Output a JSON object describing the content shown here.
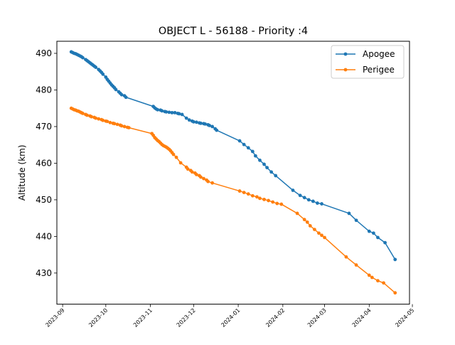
{
  "chart_data": {
    "type": "line",
    "title": "OBJECT L - 56188 - Priority :4",
    "xlabel": "",
    "ylabel": "Altitude (km)",
    "xlim": [
      "2023-08-28",
      "2024-04-29"
    ],
    "ylim": [
      421.5,
      493.3
    ],
    "x_ticks": [
      "2023-09",
      "2023-10",
      "2023-11",
      "2023-12",
      "2024-01",
      "2024-02",
      "2024-03",
      "2024-04",
      "2024-05"
    ],
    "y_ticks": [
      430,
      440,
      450,
      460,
      470,
      480,
      490
    ],
    "grid": false,
    "legend_position": "top-right",
    "series": [
      {
        "name": "Apogee",
        "color": "#1f77b4",
        "points": [
          [
            "2023-09-07",
            490.4
          ],
          [
            "2023-09-08",
            490.2
          ],
          [
            "2023-09-09",
            490.0
          ],
          [
            "2023-09-10",
            489.9
          ],
          [
            "2023-09-11",
            489.7
          ],
          [
            "2023-09-12",
            489.5
          ],
          [
            "2023-09-13",
            489.3
          ],
          [
            "2023-09-14",
            489.1
          ],
          [
            "2023-09-15",
            488.8
          ],
          [
            "2023-09-17",
            488.3
          ],
          [
            "2023-09-18",
            488.0
          ],
          [
            "2023-09-19",
            487.7
          ],
          [
            "2023-09-20",
            487.4
          ],
          [
            "2023-09-21",
            487.1
          ],
          [
            "2023-09-22",
            486.8
          ],
          [
            "2023-09-23",
            486.5
          ],
          [
            "2023-09-24",
            486.2
          ],
          [
            "2023-09-26",
            485.6
          ],
          [
            "2023-09-27",
            485.2
          ],
          [
            "2023-09-28",
            484.8
          ],
          [
            "2023-09-29",
            484.3
          ],
          [
            "2023-10-01",
            483.5
          ],
          [
            "2023-10-02",
            482.9
          ],
          [
            "2023-10-03",
            482.4
          ],
          [
            "2023-10-04",
            481.9
          ],
          [
            "2023-10-05",
            481.4
          ],
          [
            "2023-10-06",
            481.0
          ],
          [
            "2023-10-07",
            480.6
          ],
          [
            "2023-10-08",
            480.1
          ],
          [
            "2023-10-10",
            479.5
          ],
          [
            "2023-10-11",
            479.1
          ],
          [
            "2023-10-12",
            478.7
          ],
          [
            "2023-10-14",
            478.4
          ],
          [
            "2023-10-15",
            478.0
          ],
          [
            "2023-11-03",
            475.5
          ],
          [
            "2023-11-04",
            475.1
          ],
          [
            "2023-11-05",
            474.8
          ],
          [
            "2023-11-06",
            474.6
          ],
          [
            "2023-11-08",
            474.5
          ],
          [
            "2023-11-09",
            474.3
          ],
          [
            "2023-11-11",
            474.1
          ],
          [
            "2023-11-12",
            474.0
          ],
          [
            "2023-11-14",
            473.9
          ],
          [
            "2023-11-16",
            473.8
          ],
          [
            "2023-11-18",
            473.8
          ],
          [
            "2023-11-20",
            473.6
          ],
          [
            "2023-11-21",
            473.5
          ],
          [
            "2023-11-23",
            473.3
          ],
          [
            "2023-11-26",
            472.3
          ],
          [
            "2023-11-28",
            471.8
          ],
          [
            "2023-11-30",
            471.5
          ],
          [
            "2023-12-01",
            471.3
          ],
          [
            "2023-12-03",
            471.2
          ],
          [
            "2023-12-05",
            471.0
          ],
          [
            "2023-12-06",
            470.9
          ],
          [
            "2023-12-08",
            470.8
          ],
          [
            "2023-12-09",
            470.7
          ],
          [
            "2023-12-11",
            470.5
          ],
          [
            "2023-12-12",
            470.3
          ],
          [
            "2023-12-14",
            470.0
          ],
          [
            "2023-12-16",
            469.4
          ],
          [
            "2023-12-17",
            469.0
          ],
          [
            "2024-01-02",
            466.1
          ],
          [
            "2024-01-05",
            465.1
          ],
          [
            "2024-01-08",
            464.2
          ],
          [
            "2024-01-11",
            463.2
          ],
          [
            "2024-01-13",
            462.0
          ],
          [
            "2024-01-16",
            460.8
          ],
          [
            "2024-01-19",
            459.7
          ],
          [
            "2024-01-21",
            458.8
          ],
          [
            "2024-01-24",
            457.6
          ],
          [
            "2024-01-27",
            456.6
          ],
          [
            "2024-02-08",
            452.6
          ],
          [
            "2024-02-13",
            451.2
          ],
          [
            "2024-02-16",
            450.6
          ],
          [
            "2024-02-19",
            450.0
          ],
          [
            "2024-02-22",
            449.6
          ],
          [
            "2024-02-25",
            449.1
          ],
          [
            "2024-02-28",
            448.9
          ],
          [
            "2024-03-18",
            446.3
          ],
          [
            "2024-03-23",
            444.4
          ],
          [
            "2024-04-01",
            441.4
          ],
          [
            "2024-04-04",
            440.9
          ],
          [
            "2024-04-07",
            439.7
          ],
          [
            "2024-04-12",
            438.3
          ],
          [
            "2024-04-19",
            433.7
          ]
        ]
      },
      {
        "name": "Perigee",
        "color": "#ff7f0e",
        "points": [
          [
            "2023-09-07",
            475.0
          ],
          [
            "2023-09-08",
            474.8
          ],
          [
            "2023-09-09",
            474.6
          ],
          [
            "2023-09-10",
            474.5
          ],
          [
            "2023-09-11",
            474.3
          ],
          [
            "2023-09-12",
            474.2
          ],
          [
            "2023-09-13",
            474.0
          ],
          [
            "2023-09-14",
            473.8
          ],
          [
            "2023-09-15",
            473.6
          ],
          [
            "2023-09-17",
            473.3
          ],
          [
            "2023-09-18",
            473.1
          ],
          [
            "2023-09-20",
            472.9
          ],
          [
            "2023-09-21",
            472.7
          ],
          [
            "2023-09-23",
            472.5
          ],
          [
            "2023-09-24",
            472.3
          ],
          [
            "2023-09-26",
            472.1
          ],
          [
            "2023-09-28",
            471.9
          ],
          [
            "2023-09-29",
            471.7
          ],
          [
            "2023-10-01",
            471.5
          ],
          [
            "2023-10-02",
            471.4
          ],
          [
            "2023-10-04",
            471.1
          ],
          [
            "2023-10-06",
            470.9
          ],
          [
            "2023-10-07",
            470.8
          ],
          [
            "2023-10-09",
            470.6
          ],
          [
            "2023-10-11",
            470.4
          ],
          [
            "2023-10-12",
            470.2
          ],
          [
            "2023-10-14",
            470.0
          ],
          [
            "2023-10-16",
            469.8
          ],
          [
            "2023-10-17",
            469.7
          ],
          [
            "2023-11-02",
            468.1
          ],
          [
            "2023-11-03",
            467.6
          ],
          [
            "2023-11-04",
            467.0
          ],
          [
            "2023-11-05",
            466.6
          ],
          [
            "2023-11-06",
            466.2
          ],
          [
            "2023-11-07",
            465.9
          ],
          [
            "2023-11-08",
            465.5
          ],
          [
            "2023-11-09",
            465.1
          ],
          [
            "2023-11-10",
            464.8
          ],
          [
            "2023-11-11",
            464.6
          ],
          [
            "2023-11-12",
            464.4
          ],
          [
            "2023-11-13",
            464.1
          ],
          [
            "2023-11-14",
            463.8
          ],
          [
            "2023-11-15",
            463.4
          ],
          [
            "2023-11-16",
            462.9
          ],
          [
            "2023-11-17",
            462.4
          ],
          [
            "2023-11-19",
            461.6
          ],
          [
            "2023-11-22",
            460.1
          ],
          [
            "2023-11-26",
            458.9
          ],
          [
            "2023-11-27",
            458.4
          ],
          [
            "2023-11-29",
            458.0
          ],
          [
            "2023-11-30",
            457.6
          ],
          [
            "2023-12-02",
            457.3
          ],
          [
            "2023-12-03",
            456.9
          ],
          [
            "2023-12-05",
            456.6
          ],
          [
            "2023-12-06",
            456.2
          ],
          [
            "2023-12-08",
            455.8
          ],
          [
            "2023-12-10",
            455.4
          ],
          [
            "2023-12-11",
            455.0
          ],
          [
            "2023-12-14",
            454.6
          ],
          [
            "2024-01-02",
            452.4
          ],
          [
            "2024-01-05",
            452.0
          ],
          [
            "2024-01-08",
            451.6
          ],
          [
            "2024-01-11",
            451.1
          ],
          [
            "2024-01-14",
            450.8
          ],
          [
            "2024-01-16",
            450.4
          ],
          [
            "2024-01-19",
            450.1
          ],
          [
            "2024-01-22",
            449.8
          ],
          [
            "2024-01-25",
            449.4
          ],
          [
            "2024-01-28",
            449.0
          ],
          [
            "2024-01-31",
            448.8
          ],
          [
            "2024-02-11",
            446.3
          ],
          [
            "2024-02-16",
            444.6
          ],
          [
            "2024-02-18",
            443.9
          ],
          [
            "2024-02-20",
            442.9
          ],
          [
            "2024-02-23",
            441.9
          ],
          [
            "2024-02-26",
            440.9
          ],
          [
            "2024-02-28",
            440.3
          ],
          [
            "2024-03-01",
            439.7
          ],
          [
            "2024-03-16",
            434.4
          ],
          [
            "2024-03-23",
            432.2
          ],
          [
            "2024-04-01",
            429.4
          ],
          [
            "2024-04-03",
            428.8
          ],
          [
            "2024-04-07",
            427.9
          ],
          [
            "2024-04-11",
            427.3
          ],
          [
            "2024-04-19",
            424.6
          ]
        ]
      }
    ]
  }
}
